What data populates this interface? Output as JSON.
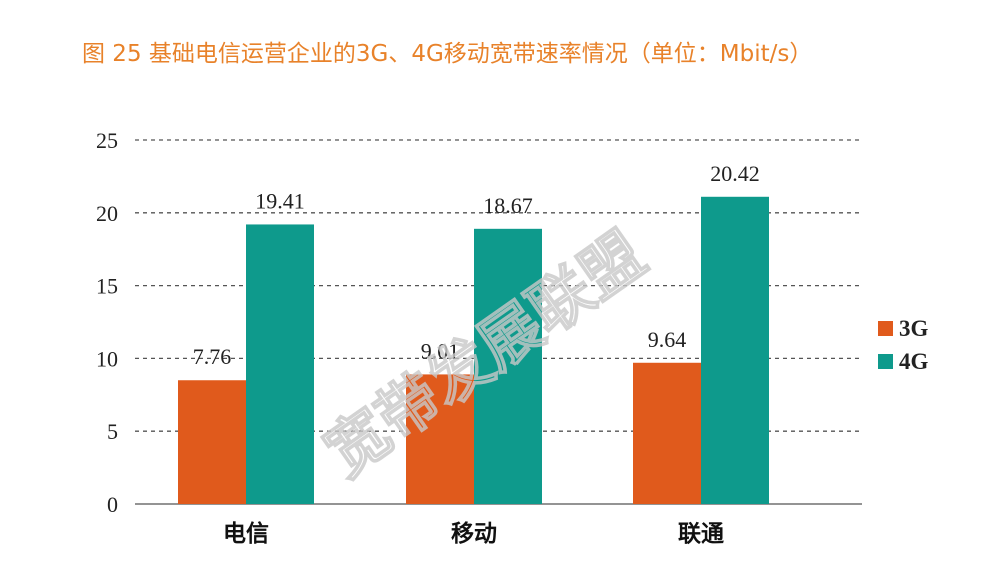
{
  "title": "图 25 基础电信运营企业的3G、4G移动宽带速率情况（单位：Mbit/s）",
  "watermark": "宽带发展联盟",
  "colors": {
    "3G": "#e05a1c",
    "4G": "#0e9a8c",
    "title": "#e8822a"
  },
  "chart_data": {
    "type": "bar",
    "title": "图 25 基础电信运营企业的3G、4G移动宽带速率情况（单位：Mbit/s）",
    "categories": [
      "电信",
      "移动",
      "联通"
    ],
    "series": [
      {
        "name": "3G",
        "values": [
          7.76,
          9.01,
          9.64
        ],
        "display_heights": [
          8.5,
          8.9,
          9.7
        ]
      },
      {
        "name": "4G",
        "values": [
          19.41,
          18.67,
          20.42
        ],
        "display_heights": [
          19.2,
          18.9,
          21.1
        ]
      }
    ],
    "ylim": [
      0,
      25
    ],
    "yticks": [
      0,
      5,
      10,
      15,
      20,
      25
    ],
    "grid": true,
    "legend": "right"
  }
}
